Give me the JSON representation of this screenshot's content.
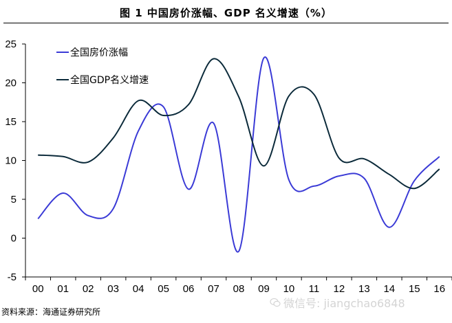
{
  "title": "图 1 中国房价涨幅、GDP 名义增速（%）",
  "source": "资料来源：海通证券研究所",
  "watermark": "微信号: jiangchao6848",
  "colors": {
    "house_price": "#3a3ad6",
    "gdp": "#0b2a3a",
    "axis": "#000000"
  },
  "chart_data": {
    "type": "line",
    "title": "图 1 中国房价涨幅、GDP 名义增速（%）",
    "xlabel": "",
    "ylabel": "",
    "ylim": [
      -5,
      25
    ],
    "yticks": [
      -5,
      0,
      5,
      10,
      15,
      20,
      25
    ],
    "categories": [
      "00",
      "01",
      "02",
      "03",
      "04",
      "05",
      "06",
      "07",
      "08",
      "09",
      "10",
      "11",
      "12",
      "13",
      "14",
      "15",
      "16"
    ],
    "grid": false,
    "legend_position": "top-left",
    "series": [
      {
        "name": "全国房价涨幅",
        "color": "#3a3ad6",
        "values": [
          2.5,
          5.8,
          2.9,
          3.8,
          13.8,
          16.9,
          6.3,
          14.8,
          -1.7,
          23.2,
          7.5,
          6.7,
          8.0,
          7.7,
          1.4,
          7.4,
          10.5
        ]
      },
      {
        "name": "全国GDP名义增速",
        "color": "#0b2a3a",
        "values": [
          10.7,
          10.5,
          9.8,
          12.9,
          17.7,
          15.8,
          17.2,
          23.1,
          18.2,
          9.3,
          18.3,
          18.5,
          10.3,
          10.2,
          8.2,
          6.4,
          8.9
        ]
      }
    ]
  }
}
